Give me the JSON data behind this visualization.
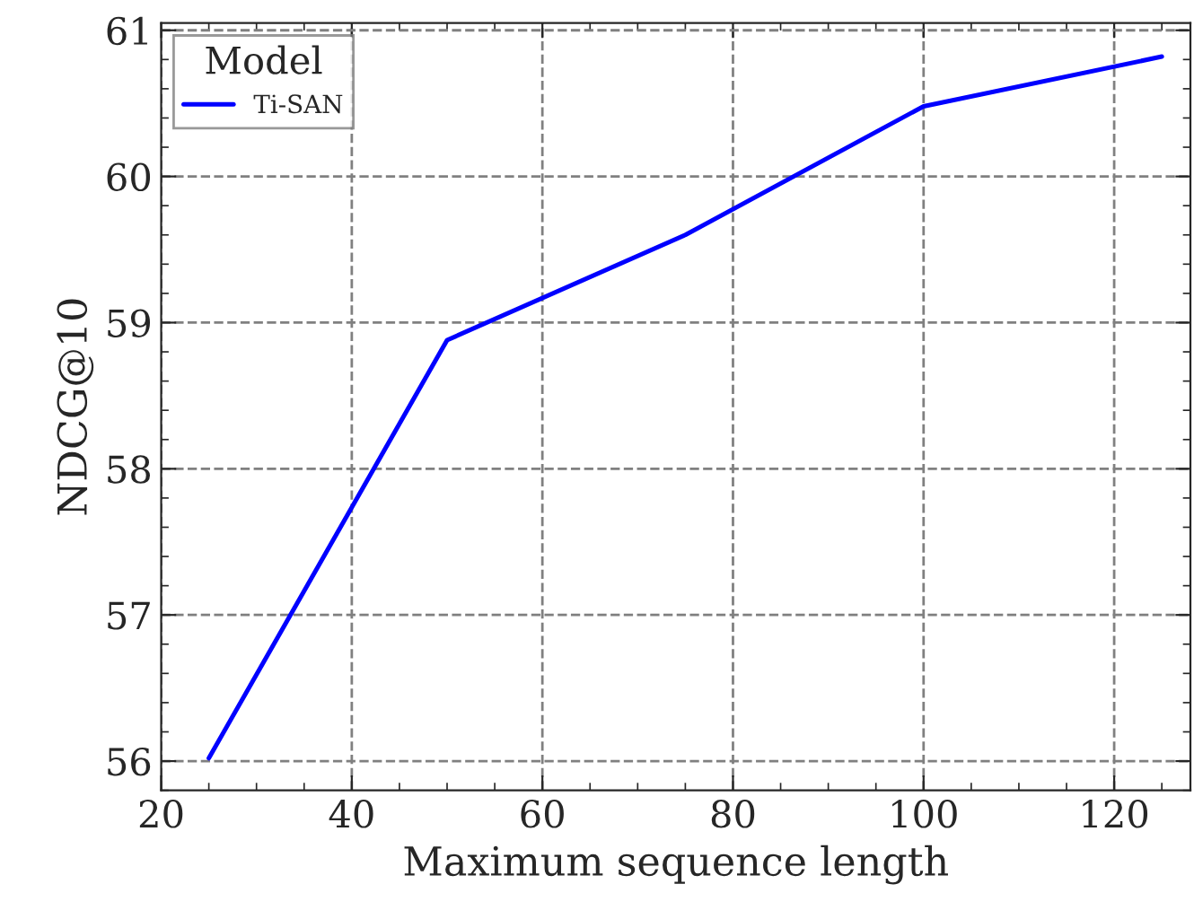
{
  "chart_data": {
    "type": "line",
    "xlabel": "Maximum sequence length",
    "ylabel": "NDCG@10",
    "legend_title": "Model",
    "x": [
      25,
      50,
      75,
      100,
      125
    ],
    "series": [
      {
        "name": "Ti-SAN",
        "color": "#0000ff",
        "values": [
          56.02,
          58.88,
          59.6,
          60.48,
          60.82
        ]
      }
    ],
    "xlim": [
      20,
      128
    ],
    "xticks": [
      20,
      40,
      60,
      80,
      100,
      120
    ],
    "ylim": [
      55.8,
      61.05
    ],
    "yticks": [
      56,
      57,
      58,
      59,
      60,
      61
    ],
    "grid": true,
    "legend": "top left",
    "line_style": "solid",
    "marker": "none"
  }
}
